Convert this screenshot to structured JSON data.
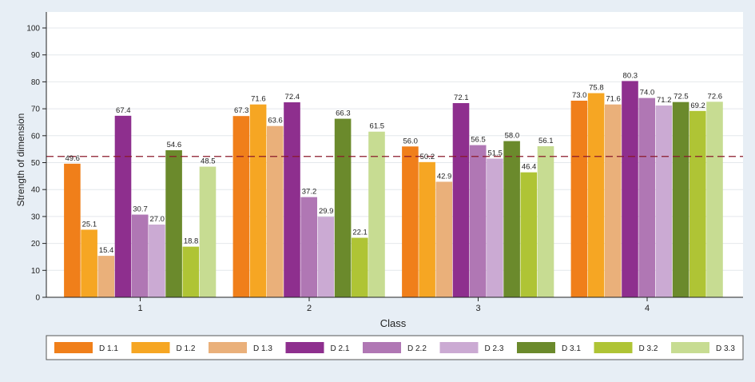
{
  "chart_data": {
    "type": "bar",
    "xlabel": "Class",
    "ylabel": "Strength of dimension",
    "ylim": [
      0,
      105
    ],
    "yticks": [
      0,
      10,
      20,
      30,
      40,
      50,
      60,
      70,
      80,
      90,
      100
    ],
    "grid": true,
    "legend_position": "bottom",
    "reference_line": {
      "y": 52.3,
      "style": "dashed",
      "color": "#8b1a2b"
    },
    "categories": [
      "1",
      "2",
      "3",
      "4"
    ],
    "series": [
      {
        "name": "D 1.1",
        "color": "#f07f1a",
        "values": [
          49.6,
          67.3,
          56.0,
          73.0
        ]
      },
      {
        "name": "D 1.2",
        "color": "#f6a623",
        "values": [
          25.1,
          71.6,
          50.2,
          75.8
        ]
      },
      {
        "name": "D 1.3",
        "color": "#eab07a",
        "values": [
          15.4,
          63.6,
          42.9,
          71.6
        ]
      },
      {
        "name": "D 2.1",
        "color": "#8e2f8e",
        "values": [
          67.4,
          72.4,
          72.1,
          80.3
        ]
      },
      {
        "name": "D 2.2",
        "color": "#b077b4",
        "values": [
          30.7,
          37.2,
          56.5,
          74.0
        ]
      },
      {
        "name": "D 2.3",
        "color": "#cbaad3",
        "values": [
          27.0,
          29.9,
          51.5,
          71.2
        ]
      },
      {
        "name": "D 3.1",
        "color": "#6b8a2c",
        "values": [
          54.6,
          66.3,
          58.0,
          72.5
        ]
      },
      {
        "name": "D 3.2",
        "color": "#afc435",
        "values": [
          18.8,
          22.1,
          46.4,
          69.2
        ]
      },
      {
        "name": "D 3.3",
        "color": "#c7dc92",
        "values": [
          48.5,
          61.5,
          56.1,
          72.6
        ]
      }
    ]
  }
}
